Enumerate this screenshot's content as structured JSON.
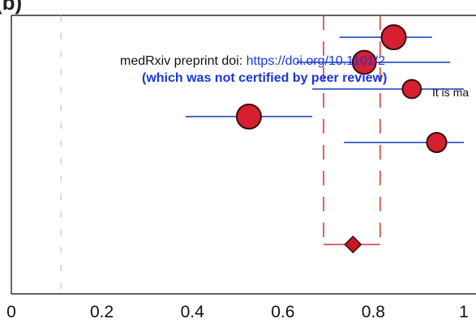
{
  "header_fragment": "(b)",
  "watermark": {
    "preprint_prefix": "medRxiv preprint doi: ",
    "preprint_link": "https://doi.org/10.1101/2",
    "certified_note": "(which was not certified by peer review)",
    "availability_fragment": "It is ma"
  },
  "chart_data": {
    "type": "scatter",
    "subtype": "forest-plot",
    "title": "",
    "xlabel": "",
    "ylabel": "",
    "xlim": [
      0,
      1
    ],
    "x_ticks": [
      {
        "value": 0,
        "label": "0"
      },
      {
        "value": 0.2,
        "label": "0.2"
      },
      {
        "value": 0.4,
        "label": "0.4"
      },
      {
        "value": 0.6,
        "label": "0.6"
      },
      {
        "value": 0.8,
        "label": "0.8"
      },
      {
        "value": 1,
        "label": "1"
      }
    ],
    "grid": false,
    "null_reference_x": 0.11,
    "studies": [
      {
        "estimate": 0.845,
        "ci": [
          0.725,
          0.93
        ],
        "weight": 1.25
      },
      {
        "estimate": 0.78,
        "ci": [
          0.63,
          0.97
        ],
        "weight": 1.2
      },
      {
        "estimate": 0.885,
        "ci": [
          0.665,
          1.0
        ],
        "weight": 0.95
      },
      {
        "estimate": 0.525,
        "ci": [
          0.385,
          0.665
        ],
        "weight": 1.25
      },
      {
        "estimate": 0.94,
        "ci": [
          0.735,
          1.0
        ],
        "weight": 1.0
      }
    ],
    "pooled": {
      "estimate": 0.755,
      "ci": [
        0.69,
        0.815
      ]
    },
    "colors": {
      "marker_fill": "#d42030",
      "marker_stroke": "#3a0a0a",
      "ci_line": "#4a6cc8",
      "pooled_bound": "#d9534f",
      "pooled_fill": "#c41a24",
      "null_line": "#c8c8c8",
      "axis": "#000000"
    }
  }
}
